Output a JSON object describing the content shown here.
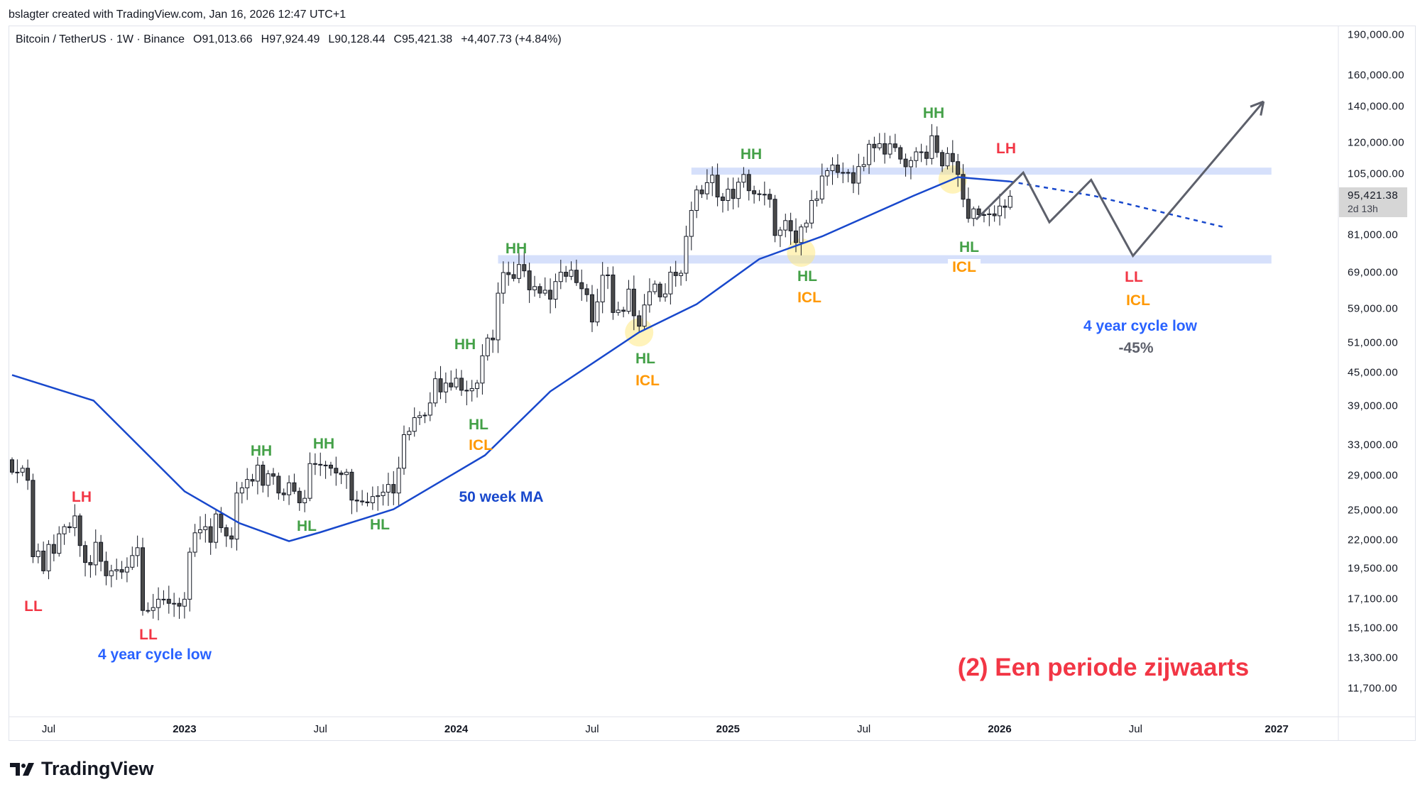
{
  "header": {
    "credit": "bslagter created with TradingView.com, Jan 16, 2026 12:47 UTC+1",
    "symbol": "Bitcoin / TetherUS · 1W · Binance",
    "open": "O91,013.66",
    "high": "H97,924.49",
    "low": "L90,128.44",
    "close": "C95,421.38",
    "change": "+4,407.73 (+4.84%)"
  },
  "price_label": {
    "price": "95,421.38",
    "countdown": "2d 13h"
  },
  "brand": {
    "name": "TradingView"
  },
  "colors": {
    "up_body": "#ffffff",
    "down_body": "#4a4a4a",
    "ma": "#1848cc",
    "zone": "#d6e0fb",
    "projection": "#5d606b",
    "green": "#43a047",
    "red": "#f23645",
    "orange": "#ff9800",
    "blue": "#2962ff"
  },
  "chart_data": {
    "type": "candlestick",
    "title": "Bitcoin / TetherUS · 1W · Binance",
    "scale": "log",
    "ylim": [
      10500,
      205000
    ],
    "start_week": "2022-05-16",
    "weekly_closes": [
      29400,
      29400,
      29900,
      28400,
      20500,
      21000,
      19300,
      21600,
      20800,
      22600,
      23300,
      23200,
      24400,
      21500,
      20000,
      19800,
      21800,
      20100,
      18900,
      19300,
      19400,
      19200,
      19600,
      20600,
      21300,
      16300,
      16300,
      16500,
      17100,
      17100,
      16800,
      16800,
      16600,
      17100,
      20900,
      22700,
      23000,
      23300,
      21800,
      24600,
      23200,
      22400,
      22100,
      26900,
      27500,
      28500,
      28300,
      30300,
      27800,
      29200,
      28900,
      26900,
      26700,
      28100,
      27100,
      25800,
      26300,
      30500,
      30400,
      30300,
      30300,
      29900,
      29300,
      29100,
      29400,
      26100,
      26000,
      25900,
      25800,
      26500,
      26600,
      27000,
      27900,
      26900,
      29900,
      34500,
      35000,
      37100,
      37400,
      37500,
      39500,
      43800,
      41400,
      43000,
      42300,
      43900,
      41700,
      41600,
      42000,
      43000,
      48300,
      52100,
      51700,
      63100,
      68900,
      68300,
      67200,
      71300,
      69400,
      64000,
      64900,
      63100,
      63900,
      61500,
      66300,
      69000,
      67800,
      69600,
      66000,
      64300,
      62700,
      55800,
      60800,
      68100,
      68200,
      58100,
      58700,
      58400,
      64200,
      57300,
      54800,
      60000,
      63500,
      65600,
      62100,
      62900,
      69000,
      68000,
      68700,
      80400,
      89800,
      98000,
      96400,
      101100,
      104400,
      95100,
      93700,
      98300,
      94500,
      101300,
      104700,
      97700,
      96400,
      96100,
      96200,
      94200,
      80700,
      82600,
      86000,
      82300,
      78300,
      83700,
      85100,
      93700,
      94300,
      104000,
      106400,
      109000,
      105600,
      105600,
      105500,
      100900,
      108300,
      109200,
      119100,
      117300,
      119400,
      114200,
      119300,
      117400,
      111800,
      108200,
      111100,
      115300,
      115200,
      112100,
      123500,
      115000,
      108600,
      114500,
      110600,
      104700,
      94200,
      86800,
      90400,
      88200,
      88200,
      88500,
      87800,
      91500,
      91013.66,
      95421.38
    ],
    "last_candle": {
      "open": 91013.66,
      "high": 97924.49,
      "low": 90128.44,
      "close": 95421.38
    },
    "first_open": 31000,
    "ma_50w": {
      "name": "50 week MA",
      "points": [
        [
          0,
          44500
        ],
        [
          15.6,
          39900
        ],
        [
          33,
          27100
        ],
        [
          43.5,
          23650
        ],
        [
          53,
          21900
        ],
        [
          59,
          22750
        ],
        [
          73,
          25100
        ],
        [
          90.5,
          31600
        ],
        [
          103,
          41500
        ],
        [
          120,
          53400
        ],
        [
          131,
          60200
        ],
        [
          143,
          73000
        ],
        [
          155,
          80400
        ],
        [
          172.5,
          95600
        ],
        [
          181,
          103500
        ],
        [
          191,
          101600
        ]
      ]
    },
    "ma_projection": [
      [
        191,
        101600
      ],
      [
        207,
        95600
      ],
      [
        232,
        83600
      ]
    ],
    "price_projection": [
      [
        184.5,
        86400
      ],
      [
        193.5,
        105500
      ],
      [
        198.5,
        85400
      ],
      [
        206.5,
        102300
      ],
      [
        214.5,
        74000
      ],
      [
        239.5,
        142900
      ]
    ],
    "zones": [
      {
        "from_week": 130,
        "to_week": 241,
        "low": 104600,
        "high": 107800
      },
      {
        "from_week": 93,
        "to_week": 241,
        "low": 71600,
        "high": 74200
      }
    ],
    "highlights": [
      [
        120,
        53400
      ],
      [
        151,
        75000
      ],
      [
        180,
        102500
      ]
    ],
    "y_ticks": [
      "190,000.00",
      "160,000.00",
      "140,000.00",
      "120,000.00",
      "105,000.00",
      "81,000.00",
      "69,000.00",
      "59,000.00",
      "51,000.00",
      "45,000.00",
      "39,000.00",
      "33,000.00",
      "29,000.00",
      "25,000.00",
      "22,000.00",
      "19,500.00",
      "17,100.00",
      "15,100.00",
      "13,300.00",
      "11,700.00"
    ],
    "x_ticks": [
      {
        "label": "Jul",
        "week": 7
      },
      {
        "label": "2023",
        "week": 33
      },
      {
        "label": "Jul",
        "week": 59
      },
      {
        "label": "2024",
        "week": 85
      },
      {
        "label": "Jul",
        "week": 111
      },
      {
        "label": "2025",
        "week": 137
      },
      {
        "label": "Jul",
        "week": 163
      },
      {
        "label": "2026",
        "week": 189
      },
      {
        "label": "Jul",
        "week": 215
      },
      {
        "label": "2027",
        "week": 242
      }
    ]
  },
  "annotations": [
    {
      "text": "LL"
    },
    {
      "text": "LH"
    },
    {
      "text": "LL"
    },
    {
      "text": "4 year cycle low"
    },
    {
      "text": "HH"
    },
    {
      "text": "HL"
    },
    {
      "text": "HH"
    },
    {
      "text": "HL"
    },
    {
      "text": "HL"
    },
    {
      "text": "ICL"
    },
    {
      "text": "50 week MA"
    },
    {
      "text": "HH"
    },
    {
      "text": "HH"
    },
    {
      "text": "HL"
    },
    {
      "text": "ICL"
    },
    {
      "text": "HH"
    },
    {
      "text": "HL"
    },
    {
      "text": "ICL"
    },
    {
      "text": "HH"
    },
    {
      "text": "LH"
    },
    {
      "text": "HL"
    },
    {
      "text": "ICL"
    },
    {
      "text": "LL"
    },
    {
      "text": "ICL"
    },
    {
      "text": "4 year cycle low"
    },
    {
      "text": "-45%"
    },
    {
      "text": "(2) Een periode zijwaarts"
    }
  ]
}
